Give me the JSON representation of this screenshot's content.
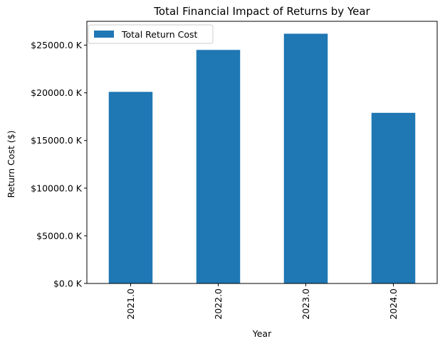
{
  "chart_data": {
    "type": "bar",
    "title": "Total Financial Impact of Returns by Year",
    "xlabel": "Year",
    "ylabel": "Return Cost ($)",
    "categories": [
      "2021.0",
      "2022.0",
      "2023.0",
      "2024.0"
    ],
    "series": [
      {
        "name": "Total Return Cost",
        "color": "#1f77b4",
        "values": [
          20100,
          24500,
          26200,
          17900
        ]
      }
    ],
    "ylim": [
      0,
      27500
    ],
    "yticks": [
      0,
      5000,
      10000,
      15000,
      20000,
      25000
    ],
    "ytick_labels": [
      "$0.0 K",
      "$5000.0 K",
      "$10000.0 K",
      "$15000.0 K",
      "$20000.0 K",
      "$25000.0 K"
    ],
    "grid": false,
    "legend_position": "top-left"
  }
}
